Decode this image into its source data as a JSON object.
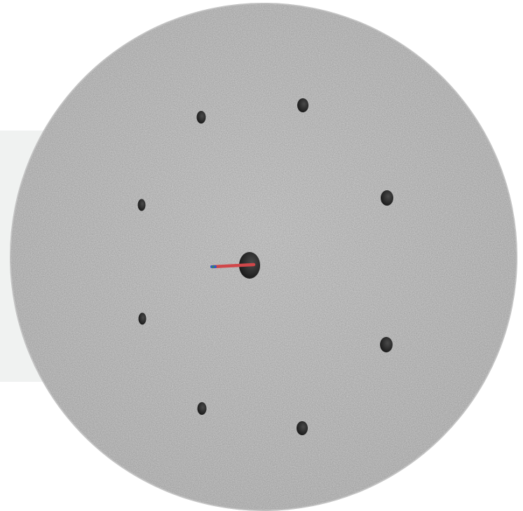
{
  "scene": {
    "object": "circular-plate",
    "surface_color": "#d3d3d3",
    "hole_color": "#2a2a2a",
    "backdrop_color": "#f0f2f1",
    "outer_hole_count": 8,
    "center_hole_count": 1,
    "axis_indicator": {
      "x_axis_color": "#d0474a",
      "y_axis_color": "#2f8f4e",
      "z_axis_color": "#2f58c8"
    }
  }
}
